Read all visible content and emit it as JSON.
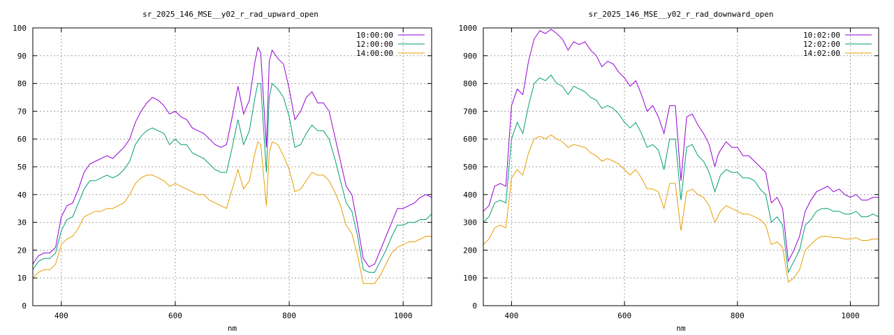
{
  "chart_data": [
    {
      "type": "line",
      "title": "sr_2025_146_MSE__y02_r_rad_upward_open",
      "xlabel": "nm",
      "ylabel": "",
      "xlim": [
        350,
        1050
      ],
      "ylim": [
        0,
        100
      ],
      "xticks": [
        400,
        600,
        800,
        1000
      ],
      "yticks": [
        0,
        10,
        20,
        30,
        40,
        50,
        60,
        70,
        80,
        90,
        100
      ],
      "grid": true,
      "legend_position": "top-right",
      "series": [
        {
          "name": "10:00:00",
          "color": "#9400d3",
          "x": [
            350,
            360,
            370,
            380,
            390,
            400,
            410,
            420,
            430,
            440,
            450,
            460,
            470,
            480,
            490,
            500,
            510,
            520,
            530,
            540,
            550,
            560,
            570,
            580,
            590,
            600,
            610,
            620,
            630,
            640,
            650,
            660,
            670,
            680,
            690,
            700,
            710,
            720,
            730,
            740,
            745,
            750,
            760,
            765,
            770,
            780,
            790,
            800,
            810,
            820,
            830,
            840,
            850,
            860,
            870,
            880,
            890,
            900,
            910,
            920,
            930,
            940,
            950,
            960,
            970,
            980,
            990,
            1000,
            1010,
            1020,
            1030,
            1040,
            1050
          ],
          "y": [
            15,
            18,
            19,
            19,
            21,
            32,
            36,
            37,
            42,
            48,
            51,
            52,
            53,
            54,
            53,
            55,
            57,
            60,
            66,
            70,
            73,
            75,
            74,
            72,
            69,
            70,
            68,
            67,
            64,
            63,
            62,
            60,
            58,
            57,
            58,
            68,
            79,
            69,
            74,
            88,
            93,
            91,
            57,
            88,
            92,
            89,
            87,
            78,
            67,
            70,
            75,
            77,
            73,
            73,
            70,
            61,
            52,
            43,
            40,
            29,
            17,
            14,
            15,
            20,
            25,
            30,
            35,
            35,
            36,
            37,
            39,
            40,
            39
          ]
        },
        {
          "name": "12:00:00",
          "color": "#009e73",
          "x": [
            350,
            360,
            370,
            380,
            390,
            400,
            410,
            420,
            430,
            440,
            450,
            460,
            470,
            480,
            490,
            500,
            510,
            520,
            530,
            540,
            550,
            560,
            570,
            580,
            590,
            600,
            610,
            620,
            630,
            640,
            650,
            660,
            670,
            680,
            690,
            700,
            710,
            720,
            730,
            740,
            745,
            750,
            760,
            765,
            770,
            780,
            790,
            800,
            810,
            820,
            830,
            840,
            850,
            860,
            870,
            880,
            890,
            900,
            910,
            920,
            930,
            940,
            950,
            960,
            970,
            980,
            990,
            1000,
            1010,
            1020,
            1030,
            1040,
            1050
          ],
          "y": [
            13,
            16,
            17,
            17,
            19,
            27,
            31,
            32,
            37,
            42,
            45,
            45,
            46,
            47,
            46,
            47,
            49,
            52,
            58,
            61,
            63,
            64,
            63,
            62,
            58,
            60,
            58,
            58,
            55,
            54,
            53,
            51,
            49,
            48,
            48,
            57,
            67,
            58,
            63,
            75,
            80,
            80,
            48,
            75,
            80,
            78,
            75,
            68,
            57,
            58,
            62,
            65,
            63,
            63,
            60,
            53,
            45,
            37,
            34,
            25,
            13,
            12,
            12,
            16,
            20,
            25,
            29,
            29,
            30,
            30,
            31,
            31,
            33
          ]
        },
        {
          "name": "14:00:00",
          "color": "#e69f00",
          "x": [
            350,
            360,
            370,
            380,
            390,
            400,
            410,
            420,
            430,
            440,
            450,
            460,
            470,
            480,
            490,
            500,
            510,
            520,
            530,
            540,
            550,
            560,
            570,
            580,
            590,
            600,
            610,
            620,
            630,
            640,
            650,
            660,
            670,
            680,
            690,
            700,
            710,
            720,
            730,
            740,
            745,
            750,
            760,
            765,
            770,
            780,
            790,
            800,
            810,
            820,
            830,
            840,
            850,
            860,
            870,
            880,
            890,
            900,
            910,
            920,
            930,
            940,
            950,
            960,
            970,
            980,
            990,
            1000,
            1010,
            1020,
            1030,
            1040,
            1050
          ],
          "y": [
            10,
            12,
            13,
            13,
            15,
            22,
            24,
            25,
            28,
            32,
            33,
            34,
            34,
            35,
            35,
            36,
            37,
            40,
            44,
            46,
            47,
            47,
            46,
            45,
            43,
            44,
            43,
            42,
            41,
            40,
            40,
            38,
            37,
            36,
            35,
            42,
            49,
            42,
            45,
            55,
            59,
            58,
            36,
            55,
            59,
            58,
            54,
            49,
            41,
            42,
            45,
            48,
            47,
            47,
            45,
            41,
            36,
            29,
            26,
            18,
            8,
            8,
            8,
            11,
            15,
            19,
            21,
            22,
            23,
            23,
            24,
            25,
            25
          ]
        }
      ]
    },
    {
      "type": "line",
      "title": "sr_2025_146_MSE__y02_r_rad_downward_open",
      "xlabel": "nm",
      "ylabel": "",
      "xlim": [
        350,
        1050
      ],
      "ylim": [
        0,
        1000
      ],
      "xticks": [
        400,
        600,
        800,
        1000
      ],
      "yticks": [
        0,
        100,
        200,
        300,
        400,
        500,
        600,
        700,
        800,
        900,
        1000
      ],
      "grid": true,
      "legend_position": "top-right",
      "series": [
        {
          "name": "10:02:00",
          "color": "#9400d3",
          "x": [
            350,
            360,
            370,
            380,
            390,
            400,
            410,
            420,
            430,
            440,
            450,
            460,
            470,
            480,
            490,
            500,
            510,
            520,
            530,
            540,
            550,
            560,
            570,
            580,
            590,
            600,
            610,
            620,
            630,
            640,
            650,
            660,
            670,
            680,
            690,
            700,
            710,
            720,
            730,
            740,
            750,
            760,
            765,
            770,
            780,
            790,
            800,
            810,
            820,
            830,
            840,
            850,
            860,
            870,
            880,
            890,
            900,
            910,
            920,
            930,
            940,
            950,
            960,
            970,
            980,
            990,
            1000,
            1010,
            1020,
            1030,
            1040,
            1050
          ],
          "y": [
            340,
            360,
            430,
            440,
            430,
            720,
            780,
            760,
            880,
            960,
            990,
            980,
            995,
            980,
            960,
            920,
            950,
            940,
            950,
            920,
            900,
            860,
            880,
            870,
            840,
            820,
            790,
            810,
            760,
            700,
            720,
            680,
            620,
            720,
            720,
            450,
            680,
            690,
            650,
            620,
            580,
            500,
            540,
            560,
            590,
            570,
            570,
            540,
            540,
            520,
            500,
            480,
            370,
            390,
            350,
            160,
            200,
            250,
            340,
            380,
            410,
            420,
            430,
            410,
            420,
            400,
            390,
            400,
            380,
            380,
            390,
            390
          ]
        },
        {
          "name": "12:02:00",
          "color": "#009e73",
          "x": [
            350,
            360,
            370,
            380,
            390,
            400,
            410,
            420,
            430,
            440,
            450,
            460,
            470,
            480,
            490,
            500,
            510,
            520,
            530,
            540,
            550,
            560,
            570,
            580,
            590,
            600,
            610,
            620,
            630,
            640,
            650,
            660,
            670,
            680,
            690,
            700,
            710,
            720,
            730,
            740,
            750,
            760,
            765,
            770,
            780,
            790,
            800,
            810,
            820,
            830,
            840,
            850,
            860,
            870,
            880,
            890,
            900,
            910,
            920,
            930,
            940,
            950,
            960,
            970,
            980,
            990,
            1000,
            1010,
            1020,
            1030,
            1040,
            1050
          ],
          "y": [
            300,
            320,
            370,
            380,
            370,
            600,
            660,
            620,
            720,
            800,
            820,
            810,
            830,
            800,
            790,
            760,
            790,
            780,
            770,
            750,
            740,
            710,
            720,
            710,
            690,
            660,
            640,
            660,
            620,
            570,
            580,
            560,
            490,
            600,
            600,
            380,
            570,
            580,
            540,
            520,
            480,
            410,
            440,
            470,
            490,
            480,
            480,
            460,
            460,
            450,
            420,
            400,
            300,
            320,
            290,
            120,
            160,
            200,
            290,
            310,
            340,
            350,
            350,
            340,
            340,
            330,
            330,
            340,
            320,
            320,
            330,
            320
          ]
        },
        {
          "name": "14:02:00",
          "color": "#e69f00",
          "x": [
            350,
            360,
            370,
            380,
            390,
            400,
            410,
            420,
            430,
            440,
            450,
            460,
            470,
            480,
            490,
            500,
            510,
            520,
            530,
            540,
            550,
            560,
            570,
            580,
            590,
            600,
            610,
            620,
            630,
            640,
            650,
            660,
            670,
            680,
            690,
            700,
            710,
            720,
            730,
            740,
            750,
            760,
            765,
            770,
            780,
            790,
            800,
            810,
            820,
            830,
            840,
            850,
            860,
            870,
            880,
            890,
            900,
            910,
            920,
            930,
            940,
            950,
            960,
            970,
            980,
            990,
            1000,
            1010,
            1020,
            1030,
            1040,
            1050
          ],
          "y": [
            220,
            240,
            280,
            290,
            280,
            460,
            490,
            470,
            550,
            600,
            610,
            600,
            615,
            600,
            590,
            570,
            580,
            575,
            570,
            550,
            540,
            520,
            530,
            520,
            510,
            490,
            470,
            490,
            460,
            420,
            420,
            410,
            350,
            440,
            440,
            270,
            410,
            420,
            400,
            390,
            360,
            300,
            320,
            340,
            360,
            350,
            340,
            330,
            330,
            320,
            310,
            290,
            220,
            230,
            210,
            85,
            100,
            130,
            200,
            220,
            240,
            250,
            250,
            245,
            245,
            240,
            240,
            245,
            235,
            235,
            240,
            240
          ]
        }
      ]
    }
  ]
}
